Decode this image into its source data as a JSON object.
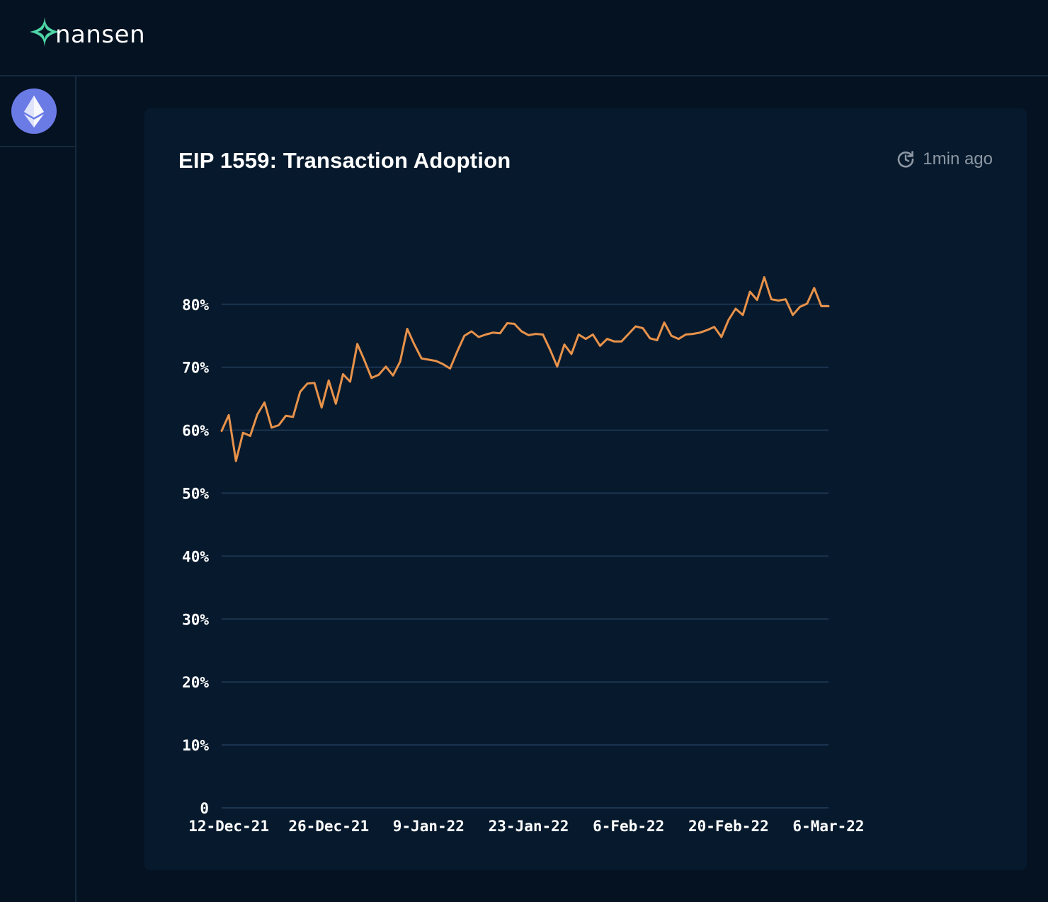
{
  "brand": {
    "name": "nansen"
  },
  "sidebar": {
    "chain_icon": "ethereum-icon"
  },
  "card": {
    "title": "EIP 1559: Transaction Adoption",
    "updated": "1min ago",
    "updated_icon": "refresh-clock-icon"
  },
  "colors": {
    "line": "#e8924a",
    "grid": "#1c3550",
    "background": "#041222",
    "card": "#071a2d",
    "brand_accent": "#4fd6a6",
    "eth_badge": "#6b7be6"
  },
  "chart_data": {
    "type": "line",
    "title": "EIP 1559: Transaction Adoption",
    "xlabel": "",
    "ylabel": "",
    "ylim": [
      0,
      85
    ],
    "yticks": [
      0,
      10,
      20,
      30,
      40,
      50,
      60,
      70,
      80
    ],
    "ytick_labels": [
      "0",
      "10%",
      "20%",
      "30%",
      "40%",
      "50%",
      "60%",
      "70%",
      "80%"
    ],
    "xtick_labels": [
      "12-Dec-21",
      "26-Dec-21",
      "9-Jan-22",
      "23-Jan-22",
      "6-Feb-22",
      "20-Feb-22",
      "6-Mar-22"
    ],
    "xtick_dates": [
      "2021-12-12",
      "2021-12-26",
      "2022-01-09",
      "2022-01-23",
      "2022-02-06",
      "2022-02-20",
      "2022-03-06"
    ],
    "grid": true,
    "series": [
      {
        "x": [
          "2021-12-11",
          "2021-12-12",
          "2021-12-13",
          "2021-12-14",
          "2021-12-15",
          "2021-12-16",
          "2021-12-17",
          "2021-12-18",
          "2021-12-19",
          "2021-12-20",
          "2021-12-21",
          "2021-12-22",
          "2021-12-23",
          "2021-12-24",
          "2021-12-25",
          "2021-12-26",
          "2021-12-27",
          "2021-12-28",
          "2021-12-29",
          "2021-12-30",
          "2021-12-31",
          "2022-01-01",
          "2022-01-02",
          "2022-01-03",
          "2022-01-04",
          "2022-01-05",
          "2022-01-06",
          "2022-01-07",
          "2022-01-08",
          "2022-01-09",
          "2022-01-10",
          "2022-01-11",
          "2022-01-12",
          "2022-01-13",
          "2022-01-14",
          "2022-01-15",
          "2022-01-16",
          "2022-01-17",
          "2022-01-18",
          "2022-01-19",
          "2022-01-20",
          "2022-01-21",
          "2022-01-22",
          "2022-01-23",
          "2022-01-24",
          "2022-01-25",
          "2022-01-26",
          "2022-01-27",
          "2022-01-28",
          "2022-01-29",
          "2022-01-30",
          "2022-01-31",
          "2022-02-01",
          "2022-02-02",
          "2022-02-03",
          "2022-02-04",
          "2022-02-05",
          "2022-02-06",
          "2022-02-07",
          "2022-02-08",
          "2022-02-09",
          "2022-02-10",
          "2022-02-11",
          "2022-02-12",
          "2022-02-13",
          "2022-02-14",
          "2022-02-15",
          "2022-02-16",
          "2022-02-17",
          "2022-02-18",
          "2022-02-19",
          "2022-02-20",
          "2022-02-21",
          "2022-02-22",
          "2022-02-23",
          "2022-02-24",
          "2022-02-25",
          "2022-02-26",
          "2022-02-27",
          "2022-02-28",
          "2022-03-01",
          "2022-03-02",
          "2022-03-03",
          "2022-03-04",
          "2022-03-05",
          "2022-03-06"
        ],
        "values": [
          59.9,
          62.4,
          55.1,
          59.6,
          59.1,
          62.5,
          64.4,
          60.4,
          60.8,
          62.3,
          62.1,
          66.1,
          67.4,
          67.5,
          63.6,
          67.9,
          64.2,
          68.9,
          67.7,
          73.7,
          71.1,
          68.3,
          68.8,
          70.1,
          68.7,
          70.9,
          76.1,
          73.6,
          71.4,
          71.2,
          71.0,
          70.5,
          69.8,
          72.5,
          75.0,
          75.7,
          74.8,
          75.2,
          75.5,
          75.4,
          77.0,
          76.9,
          75.7,
          75.1,
          75.3,
          75.2,
          72.8,
          70.1,
          73.6,
          72.1,
          75.2,
          74.5,
          75.2,
          73.4,
          74.5,
          74.1,
          74.1,
          75.3,
          76.5,
          76.2,
          74.6,
          74.3,
          77.1,
          75.0,
          74.5,
          75.2,
          75.3,
          75.5,
          75.9,
          76.4,
          74.8,
          77.5,
          79.3,
          78.3,
          82.0,
          80.7,
          84.3,
          80.8,
          80.6,
          80.8,
          78.3,
          79.6,
          80.1,
          82.6,
          79.7,
          79.7
        ]
      }
    ]
  }
}
